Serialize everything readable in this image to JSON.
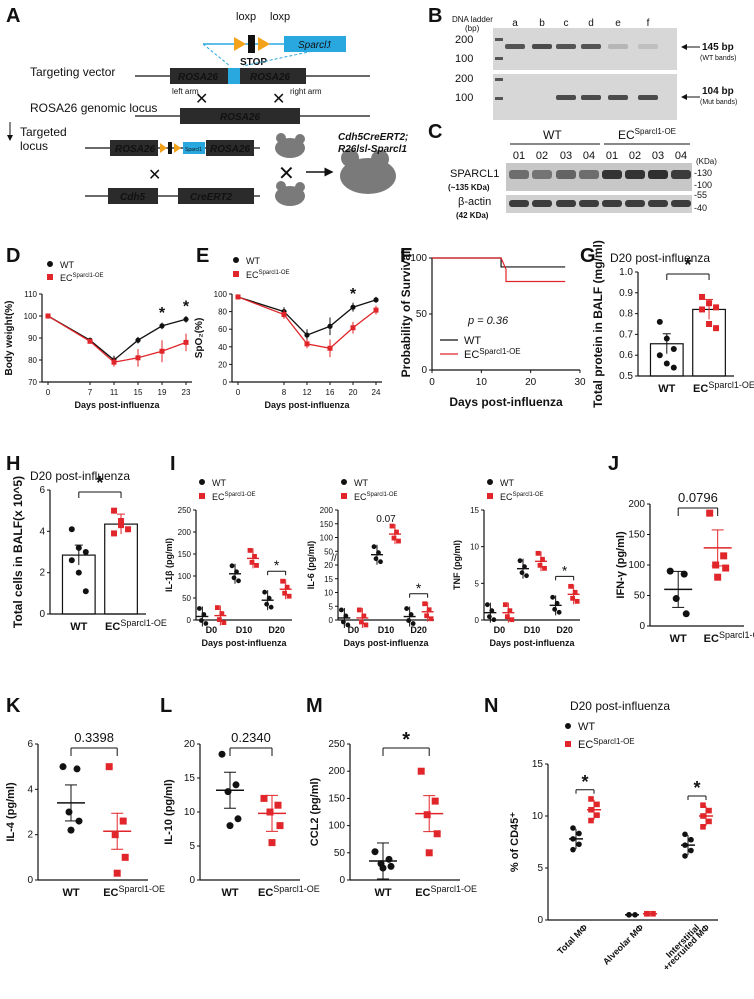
{
  "colors": {
    "wt": "#111111",
    "ec": "#e0262a",
    "sparcl": "#29a8e0",
    "loxp": "#f3a21b"
  },
  "panel_letters": [
    "A",
    "B",
    "C",
    "D",
    "E",
    "F",
    "G",
    "H",
    "I",
    "J",
    "K",
    "L",
    "M",
    "N"
  ],
  "panelA": {
    "loxp1": "loxp",
    "loxp2": "loxp",
    "sparcl1": "Sparcl1",
    "stop": "STOP",
    "targeting_vector": "Targeting vector",
    "rosa26": "ROSA26",
    "left_arm": "left arm",
    "right_arm": "right arm",
    "genomic_locus": "ROSA26 genomic locus",
    "targeted_locus_1": "Targeted",
    "targeted_locus_2": "locus",
    "small_sparcl": "Sparcl1",
    "cdh5": "Cdh5",
    "creert2": "CreERT2",
    "mouse_label_1": "Cdh5CreERT2;",
    "mouse_label_2": "R26lsl-Sparcl1"
  },
  "panelB": {
    "ladder": "DNA ladder",
    "bp": "(bp)",
    "lanes": [
      "a",
      "b",
      "c",
      "d",
      "e",
      "f"
    ],
    "ladder_top": [
      "200",
      "100"
    ],
    "ladder_bot": [
      "200",
      "100"
    ],
    "wt_band": "145 bp",
    "wt_band_note": "(WT bands)",
    "mut_band": "104 bp",
    "mut_band_note": "(Mut bands)"
  },
  "panelC": {
    "wt": "WT",
    "ec": "EC",
    "ec_sup": "Sparcl1-OE",
    "lanes": [
      "01",
      "02",
      "03",
      "04",
      "01",
      "02",
      "03",
      "04"
    ],
    "kda": "(KDa)",
    "markers_top": [
      "-130",
      "-100"
    ],
    "markers_bot": [
      "-55",
      "-40"
    ],
    "sparcl1": "SPARCL1",
    "sparcl1_kda": "(~135 KDa)",
    "actin": "β-actin",
    "actin_kda": "(42 KDa)"
  },
  "legend": {
    "wt": "WT",
    "ec": "EC",
    "ec_sup": "Sparcl1-OE"
  },
  "panelD": {
    "ylabel": "Body weight(%)",
    "xlabel": "Days post-influenza",
    "yticks": [
      "70",
      "80",
      "90",
      "100",
      "110"
    ],
    "xticks": [
      "0",
      "7",
      "11",
      "15",
      "19",
      "23"
    ],
    "stars": [
      "*",
      "*"
    ]
  },
  "panelE": {
    "ylabel": "SpO₂(%)",
    "xlabel": "Days post-influenza",
    "yticks": [
      "0",
      "20",
      "40",
      "60",
      "80",
      "100"
    ],
    "xticks": [
      "0",
      "8",
      "12",
      "16",
      "20",
      "24"
    ],
    "stars": [
      "*"
    ]
  },
  "panelF": {
    "ylabel": "Probability of Survival",
    "xlabel": "Days post-influenza",
    "yticks": [
      "0",
      "50",
      "100"
    ],
    "xticks": [
      "0",
      "10",
      "20",
      "30"
    ],
    "pvalue": "p = 0.36"
  },
  "panelG": {
    "title": "D20 post-influenza",
    "ylabel": "Total protein in BALF (mg/ml)",
    "yticks": [
      "0.5",
      "0.6",
      "0.7",
      "0.8",
      "0.9",
      "1.0"
    ],
    "star": "*"
  },
  "panelH": {
    "title": "D20 post-influenza",
    "ylabel": "Total cells in BALF(x 10^5)",
    "yticks": [
      "0",
      "2",
      "4",
      "6"
    ],
    "star": "*"
  },
  "panelI": {
    "xlabel": "Days post-influenza",
    "xticks": [
      "D0",
      "D10",
      "D20"
    ],
    "il1b": {
      "ylabel": "IL-1β (pg/ml)",
      "yticks": [
        "0",
        "50",
        "100",
        "150",
        "200",
        "250"
      ],
      "star": "*"
    },
    "il6": {
      "ylabel": "IL-6 (pg/ml)",
      "yticks": [
        "0",
        "5",
        "10",
        "15",
        "20",
        "50",
        "100",
        "150",
        "200"
      ],
      "p": "0.07",
      "star": "*"
    },
    "tnf": {
      "ylabel": "TNF (pg/ml)",
      "yticks": [
        "0",
        "5",
        "10",
        "15"
      ],
      "star": "*"
    }
  },
  "panelJ": {
    "ylabel": "IFN-γ (pg/ml)",
    "yticks": [
      "0",
      "50",
      "100",
      "150",
      "200"
    ],
    "p": "0.0796"
  },
  "panelK": {
    "ylabel": "IL-4 (pg/ml)",
    "yticks": [
      "0",
      "2",
      "4",
      "6"
    ],
    "p": "0.3398"
  },
  "panelL": {
    "ylabel": "IL-10 (pg/ml)",
    "yticks": [
      "0",
      "5",
      "10",
      "15",
      "20"
    ],
    "p": "0.2340"
  },
  "panelM": {
    "ylabel": "CCL2 (pg/ml)",
    "yticks": [
      "0",
      "50",
      "100",
      "150",
      "200",
      "250"
    ],
    "star": "*"
  },
  "panelN": {
    "title": "D20 post-influenza",
    "ylabel": "% of CD45⁺",
    "yticks": [
      "0",
      "5",
      "10",
      "15"
    ],
    "xcats": [
      "Total MΦ",
      "Alveolar MΦ",
      "Interstitial"
    ],
    "xcat3b": "+recruited MΦ",
    "stars": [
      "*",
      "*"
    ]
  },
  "chart_data": [
    {
      "id": "D",
      "type": "line",
      "title": "",
      "xlabel": "Days post-influenza",
      "ylabel": "Body weight(%)",
      "ylim": [
        70,
        110
      ],
      "x": [
        0,
        7,
        11,
        15,
        19,
        23
      ],
      "series": [
        {
          "name": "WT",
          "values": [
            100,
            89,
            80,
            89,
            95.5,
            98.5
          ],
          "err": [
            0,
            1,
            2,
            1.5,
            1.5,
            1.5
          ]
        },
        {
          "name": "EC Sparcl1-OE",
          "values": [
            100,
            88.5,
            79,
            81,
            84,
            88
          ],
          "err": [
            0,
            1,
            2,
            4,
            5,
            4
          ]
        }
      ]
    },
    {
      "id": "E",
      "type": "line",
      "xlabel": "Days post-influenza",
      "ylabel": "SpO2(%)",
      "ylim": [
        0,
        100
      ],
      "x": [
        0,
        8,
        12,
        16,
        20,
        24
      ],
      "series": [
        {
          "name": "WT",
          "values": [
            99,
            94,
            86,
            89,
            95.5,
            98
          ],
          "err": [
            0,
            1.5,
            2,
            3,
            1.5,
            1
          ]
        },
        {
          "name": "EC Sparcl1-OE",
          "values": [
            99,
            93,
            83,
            81.5,
            88.5,
            94.5
          ],
          "err": [
            0,
            1.5,
            1.5,
            3,
            2,
            1.5
          ]
        }
      ]
    },
    {
      "id": "F",
      "type": "line",
      "xlabel": "Days post-influenza",
      "ylabel": "Probability of Survival",
      "ylim": [
        0,
        100
      ],
      "series": [
        {
          "name": "WT",
          "x": [
            0,
            14,
            14,
            27
          ],
          "values": [
            100,
            100,
            92,
            92
          ]
        },
        {
          "name": "EC Sparcl1-OE",
          "x": [
            0,
            14,
            15,
            15,
            27
          ],
          "values": [
            100,
            100,
            90,
            79,
            79
          ]
        }
      ]
    },
    {
      "id": "G",
      "type": "bar",
      "categories": [
        "WT",
        "EC Sparcl1-OE"
      ],
      "values": [
        0.655,
        0.82
      ],
      "ylim": [
        0.5,
        1.0
      ],
      "points": [
        [
          0.76,
          0.68,
          0.63,
          0.6,
          0.56,
          0.54
        ],
        [
          0.88,
          0.85,
          0.83,
          0.82,
          0.75,
          0.73
        ]
      ]
    },
    {
      "id": "H",
      "type": "bar",
      "categories": [
        "WT",
        "EC Sparcl1-OE"
      ],
      "values": [
        2.85,
        4.35
      ],
      "ylim": [
        0,
        6
      ],
      "points": [
        [
          4.1,
          3.2,
          3.0,
          2.6,
          2.0,
          1.1
        ],
        [
          5.0,
          4.3,
          4.1,
          3.9,
          4.5
        ]
      ]
    },
    {
      "id": "I-IL1b",
      "type": "scatter",
      "categories": [
        "D0",
        "D10",
        "D20"
      ],
      "ylim": [
        0,
        250
      ],
      "series": [
        {
          "name": "WT",
          "values": [
            8,
            105,
            45
          ]
        },
        {
          "name": "EC Sparcl1-OE",
          "values": [
            10,
            140,
            70
          ]
        }
      ]
    },
    {
      "id": "I-IL6",
      "type": "scatter",
      "categories": [
        "D0",
        "D10",
        "D20"
      ],
      "series": [
        {
          "name": "WT",
          "values": [
            3,
            95,
            5
          ]
        },
        {
          "name": "EC Sparcl1-OE",
          "values": [
            3,
            125,
            12
          ]
        }
      ]
    },
    {
      "id": "I-TNF",
      "type": "scatter",
      "categories": [
        "D0",
        "D10",
        "D20"
      ],
      "ylim": [
        0,
        15
      ],
      "series": [
        {
          "name": "WT",
          "values": [
            1,
            7,
            2
          ]
        },
        {
          "name": "EC Sparcl1-OE",
          "values": [
            1,
            8,
            3.5
          ]
        }
      ]
    },
    {
      "id": "J",
      "type": "scatter",
      "categories": [
        "WT",
        "EC Sparcl1-OE"
      ],
      "ylim": [
        0,
        200
      ],
      "series": [
        {
          "name": "WT",
          "values": [
            60
          ],
          "points": [
            90,
            85,
            45,
            20
          ]
        },
        {
          "name": "EC Sparcl1-OE",
          "values": [
            128
          ],
          "points": [
            185,
            115,
            100,
            95,
            80
          ]
        }
      ]
    },
    {
      "id": "K",
      "type": "scatter",
      "categories": [
        "WT",
        "EC Sparcl1-OE"
      ],
      "ylim": [
        0,
        6
      ],
      "series": [
        {
          "name": "WT",
          "values": [
            3.4
          ],
          "points": [
            5.0,
            4.9,
            3.0,
            2.6,
            2.2
          ]
        },
        {
          "name": "EC Sparcl1-OE",
          "values": [
            2.15
          ],
          "points": [
            5.0,
            2.6,
            2.0,
            1.0,
            0.3
          ]
        }
      ]
    },
    {
      "id": "L",
      "type": "scatter",
      "categories": [
        "WT",
        "EC Sparcl1-OE"
      ],
      "ylim": [
        0,
        20
      ],
      "series": [
        {
          "name": "WT",
          "values": [
            13.2
          ],
          "points": [
            18.5,
            14,
            13,
            9,
            8
          ]
        },
        {
          "name": "EC Sparcl1-OE",
          "values": [
            9.8
          ],
          "points": [
            12,
            11,
            10,
            8,
            5.5
          ]
        }
      ]
    },
    {
      "id": "M",
      "type": "scatter",
      "categories": [
        "WT",
        "EC Sparcl1-OE"
      ],
      "ylim": [
        0,
        250
      ],
      "series": [
        {
          "name": "WT",
          "values": [
            35
          ],
          "points": [
            52,
            38,
            30,
            25,
            22
          ]
        },
        {
          "name": "EC Sparcl1-OE",
          "values": [
            122
          ],
          "points": [
            200,
            145,
            120,
            85,
            50
          ]
        }
      ]
    },
    {
      "id": "N",
      "type": "scatter",
      "categories": [
        "Total MΦ",
        "Alveolar MΦ",
        "Interstitial +recruited MΦ"
      ],
      "ylim": [
        0,
        15
      ],
      "series": [
        {
          "name": "WT",
          "values": [
            7.8,
            0.5,
            7.2
          ]
        },
        {
          "name": "EC Sparcl1-OE",
          "values": [
            10.6,
            0.6,
            10.0
          ]
        }
      ]
    }
  ]
}
